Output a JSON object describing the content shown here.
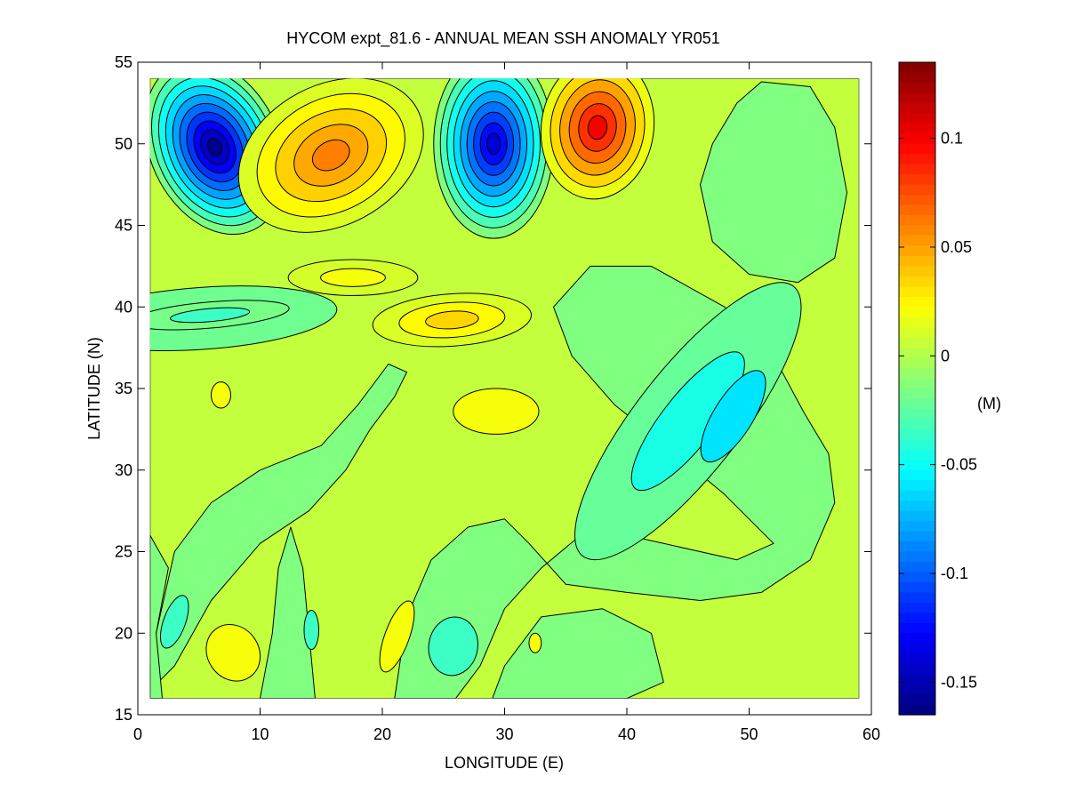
{
  "chart_data": {
    "type": "contour",
    "title": "HYCOM expt_81.6 - ANNUAL MEAN SSH ANOMALY YR051",
    "xlabel": "LONGITUDE (E)",
    "ylabel": "LATITUDE (N)",
    "xlim": [
      0,
      60
    ],
    "ylim": [
      15,
      55
    ],
    "x_ticks": [
      0,
      10,
      20,
      30,
      40,
      50,
      60
    ],
    "y_ticks": [
      15,
      20,
      25,
      30,
      35,
      40,
      45,
      50,
      55
    ],
    "data_domain": {
      "lon": [
        1,
        59
      ],
      "lat": [
        16,
        54
      ]
    },
    "background_level": 0.005,
    "colorbar": {
      "label": "(M)",
      "range": [
        -0.165,
        0.135
      ],
      "ticks": [
        0.1,
        0.05,
        0,
        -0.05,
        -0.1,
        -0.15
      ],
      "tick_labels": [
        "0.1",
        "0.05",
        "0",
        "-0.05",
        "-0.1",
        "-0.15"
      ],
      "colormap": "jet",
      "stops": [
        "#00008f",
        "#0000ff",
        "#00ffff",
        "#ffff00",
        "#ff0000",
        "#800000"
      ]
    },
    "features": [
      {
        "name": "low-6E-50N",
        "center": [
          6.3,
          49.8
        ],
        "rx": 5.3,
        "ry": 5.6,
        "rot": -25,
        "peak": -0.16,
        "levels": 10
      },
      {
        "name": "high-16E-49N",
        "center": [
          15.8,
          49.3
        ],
        "rx": 8.0,
        "ry": 4.3,
        "rot": -28,
        "peak": 0.06,
        "levels": 5
      },
      {
        "name": "low-29E-50N",
        "center": [
          29.1,
          50.0
        ],
        "rx": 4.9,
        "ry": 5.8,
        "rot": 0,
        "peak": -0.14,
        "levels": 9
      },
      {
        "name": "high-38E-51N",
        "center": [
          37.6,
          51.0
        ],
        "rx": 4.6,
        "ry": 4.4,
        "rot": 8,
        "peak": 0.1,
        "levels": 6
      },
      {
        "name": "high-25E-39N",
        "center": [
          25.7,
          39.2
        ],
        "rx": 6.5,
        "ry": 1.6,
        "rot": -4,
        "peak": 0.035,
        "levels": 3
      },
      {
        "name": "high-17E-42N",
        "center": [
          17.6,
          41.8
        ],
        "rx": 5.3,
        "ry": 1.1,
        "rot": 0,
        "peak": 0.02,
        "levels": 2
      },
      {
        "name": "high-29E-34N",
        "center": [
          29.3,
          33.6
        ],
        "rx": 3.5,
        "ry": 1.4,
        "rot": 0,
        "peak": 0.02,
        "levels": 1
      },
      {
        "name": "high-7E-35N",
        "center": [
          6.8,
          34.6
        ],
        "rx": 0.8,
        "ry": 0.8,
        "rot": 0,
        "peak": 0.02,
        "levels": 1
      },
      {
        "name": "high-8E-19N",
        "center": [
          7.8,
          18.8
        ],
        "rx": 2.1,
        "ry": 1.8,
        "rot": -35,
        "peak": 0.02,
        "levels": 1
      },
      {
        "name": "high-21E-20N",
        "center": [
          21.2,
          19.8
        ],
        "rx": 1.0,
        "ry": 2.3,
        "rot": 20,
        "peak": 0.02,
        "levels": 1
      },
      {
        "name": "high-32E-19N",
        "center": [
          32.5,
          19.4
        ],
        "rx": 0.5,
        "ry": 0.6,
        "rot": 0,
        "peak": 0.02,
        "levels": 1
      },
      {
        "name": "low-5E-39N",
        "center": [
          5.3,
          39.3
        ],
        "rx": 11.0,
        "ry": 1.9,
        "rot": -4,
        "peak": -0.02,
        "levels": 1
      },
      {
        "name": "low-6E-39N-inner",
        "center": [
          5.9,
          39.5
        ],
        "rx": 6.5,
        "ry": 0.8,
        "rot": -5,
        "peak": -0.035,
        "levels": 2
      },
      {
        "name": "low-3E-21N",
        "center": [
          3.0,
          20.7
        ],
        "rx": 0.9,
        "ry": 1.7,
        "rot": 20,
        "peak": -0.035,
        "levels": 1
      },
      {
        "name": "low-26E-20N",
        "center": [
          25.8,
          19.2
        ],
        "rx": 2.0,
        "ry": 1.8,
        "rot": 10,
        "peak": -0.035,
        "levels": 1
      },
      {
        "name": "low-14E-20N",
        "center": [
          14.2,
          20.2
        ],
        "rx": 0.6,
        "ry": 1.2,
        "rot": 0,
        "peak": -0.035,
        "levels": 1
      },
      {
        "name": "low-45E-33N-band",
        "center": [
          45.0,
          33.0
        ],
        "rx": 14.0,
        "ry": 3.2,
        "rot": -52,
        "peak": -0.045,
        "levels": 2
      },
      {
        "name": "low-49E-33N-inner",
        "center": [
          48.7,
          33.3
        ],
        "rx": 4.3,
        "ry": 1.2,
        "rot": -58,
        "peak": -0.06,
        "levels": 1
      }
    ],
    "lowland_regions": [
      {
        "name": "west-basin",
        "polygon": [
          [
            1,
            16.5
          ],
          [
            3,
            18
          ],
          [
            6,
            22
          ],
          [
            10,
            25.5
          ],
          [
            14,
            27.5
          ],
          [
            17,
            30
          ],
          [
            19,
            32.5
          ],
          [
            21,
            34.5
          ],
          [
            22,
            36
          ],
          [
            20.5,
            36.5
          ],
          [
            18,
            34
          ],
          [
            15,
            31.5
          ],
          [
            10,
            30
          ],
          [
            6,
            28
          ],
          [
            3,
            25
          ],
          [
            1.5,
            20
          ],
          [
            1,
            18
          ]
        ]
      },
      {
        "name": "south-central",
        "polygon": [
          [
            21,
            16
          ],
          [
            22,
            21
          ],
          [
            24,
            24.5
          ],
          [
            27,
            26.5
          ],
          [
            30,
            27
          ],
          [
            32,
            25.5
          ],
          [
            35,
            23
          ],
          [
            40,
            22.5
          ],
          [
            46,
            22
          ],
          [
            51,
            22.5
          ],
          [
            55,
            24.5
          ],
          [
            57,
            28
          ],
          [
            56.5,
            31
          ],
          [
            54.5,
            33.5
          ],
          [
            52,
            37
          ],
          [
            48,
            40
          ],
          [
            42,
            42.5
          ],
          [
            37,
            42.5
          ],
          [
            34,
            40
          ],
          [
            35.5,
            37
          ],
          [
            39,
            34
          ],
          [
            44,
            31
          ],
          [
            48,
            28.5
          ],
          [
            52,
            25.5
          ],
          [
            49,
            24.5
          ],
          [
            43,
            25.5
          ],
          [
            37,
            26.5
          ],
          [
            33,
            24
          ],
          [
            30,
            21.5
          ],
          [
            28,
            18
          ],
          [
            26,
            16
          ]
        ]
      },
      {
        "name": "northeast-shelf",
        "polygon": [
          [
            46,
            47.5
          ],
          [
            47,
            50
          ],
          [
            49,
            52.5
          ],
          [
            51,
            53.8
          ],
          [
            55,
            53.5
          ],
          [
            57,
            51
          ],
          [
            58,
            47
          ],
          [
            57,
            43
          ],
          [
            54,
            41.5
          ],
          [
            50,
            42
          ],
          [
            47,
            44
          ]
        ]
      },
      {
        "name": "west-strip",
        "polygon": [
          [
            1,
            16
          ],
          [
            2,
            16
          ],
          [
            1.5,
            20
          ],
          [
            2.5,
            24
          ],
          [
            1,
            26
          ]
        ]
      },
      {
        "name": "central-south",
        "polygon": [
          [
            10,
            16
          ],
          [
            11,
            20
          ],
          [
            11.5,
            24
          ],
          [
            12.5,
            26.5
          ],
          [
            13.5,
            24
          ],
          [
            14,
            20
          ],
          [
            14.5,
            16
          ]
        ]
      },
      {
        "name": "far-south",
        "polygon": [
          [
            29,
            16
          ],
          [
            30,
            18
          ],
          [
            33,
            21
          ],
          [
            38,
            21.5
          ],
          [
            42,
            20
          ],
          [
            43,
            17
          ],
          [
            40,
            16
          ]
        ]
      }
    ]
  }
}
